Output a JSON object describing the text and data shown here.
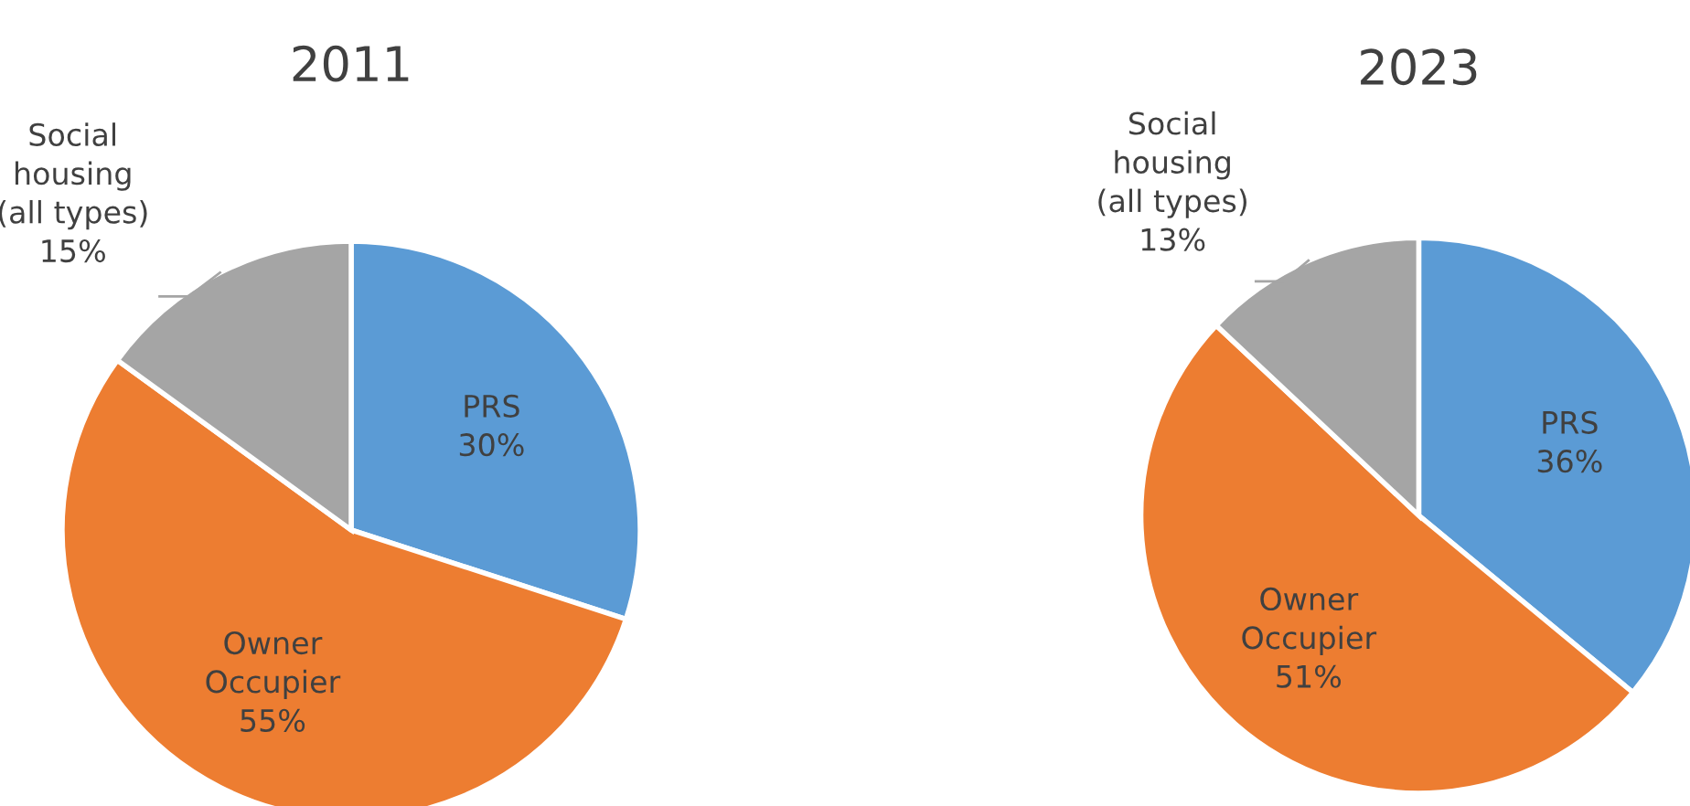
{
  "chart_data": [
    {
      "type": "pie",
      "title": "2011",
      "categories": [
        "PRS",
        "Owner\nOccupier",
        "Social\nhousing\n(all types)"
      ],
      "values": [
        30,
        55,
        15
      ],
      "value_labels": [
        "30%",
        "55%",
        "15%"
      ],
      "colors": [
        "#5b9bd5",
        "#ed7d31",
        "#a5a5a5"
      ]
    },
    {
      "type": "pie",
      "title": "2023",
      "categories": [
        "PRS",
        "Owner\nOccupier",
        "Social\nhousing\n(all types)"
      ],
      "values": [
        36,
        51,
        13
      ],
      "value_labels": [
        "36%",
        "51%",
        "13%"
      ],
      "colors": [
        "#5b9bd5",
        "#ed7d31",
        "#a5a5a5"
      ]
    }
  ]
}
